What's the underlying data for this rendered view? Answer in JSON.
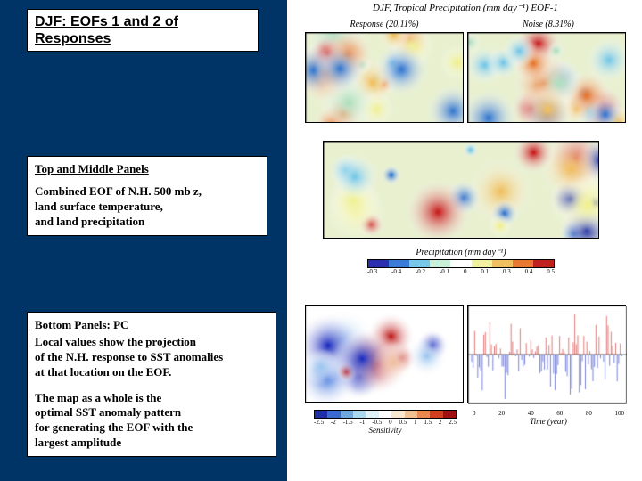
{
  "title": "DJF: EOFs 1 and 2 of Responses",
  "box1": {
    "heading": "Top and Middle Panels",
    "lines": [
      "Combined EOF of  N.H. 500 mb z,",
      "land surface temperature,",
      "and land precipitation"
    ]
  },
  "box2": {
    "heading": "Bottom Panels: PC",
    "lines": [
      "Local values show the projection",
      "of the N.H. response to SST anomalies",
      "at that location on the EOF."
    ],
    "para2": [
      "The map as a whole is the",
      "optimal SST anomaly pattern",
      "for generating the EOF with the",
      "largest amplitude"
    ]
  },
  "figure_header": "DJF, Tropical Precipitation (mm day⁻¹) EOF-1",
  "top_row": {
    "left_label": "Response (20.11%)",
    "right_label": "Noise (8.31%)"
  },
  "middle_row": {
    "colorbar_label": "Precipitation (mm day⁻¹)",
    "colorbar_ticks": [
      "-0.3",
      "-0.4",
      "-0.2",
      "-0.1",
      "0",
      "0.1",
      "0.3",
      "0.4",
      "0.5"
    ],
    "colorbar_colors": [
      "#2d2db0",
      "#3a7ad8",
      "#77c8e8",
      "#c8f0d8",
      "#ffffff",
      "#f0f0a0",
      "#f0c060",
      "#e87830",
      "#c02020"
    ]
  },
  "bottom": {
    "sens_label": "Sensitivity",
    "sens_ticks": [
      "-2.5",
      "-2",
      "-1.5",
      "-1",
      "-0.5",
      "0",
      "0.5",
      "1",
      "1.5",
      "2",
      "2.5"
    ],
    "sens_colors": [
      "#1f2fa8",
      "#3a6ad0",
      "#6fa8e0",
      "#a8d8f0",
      "#e0f0f8",
      "#ffffff",
      "#f8e8d0",
      "#f0c090",
      "#e88850",
      "#d04020",
      "#a01010"
    ],
    "time_label": "Time (year)",
    "time_ticks": [
      "0",
      "20",
      "40",
      "60",
      "80",
      "100"
    ]
  },
  "colors": {
    "accent_bg": "#003366",
    "red": "#cc2020",
    "blue": "#2030c0"
  }
}
